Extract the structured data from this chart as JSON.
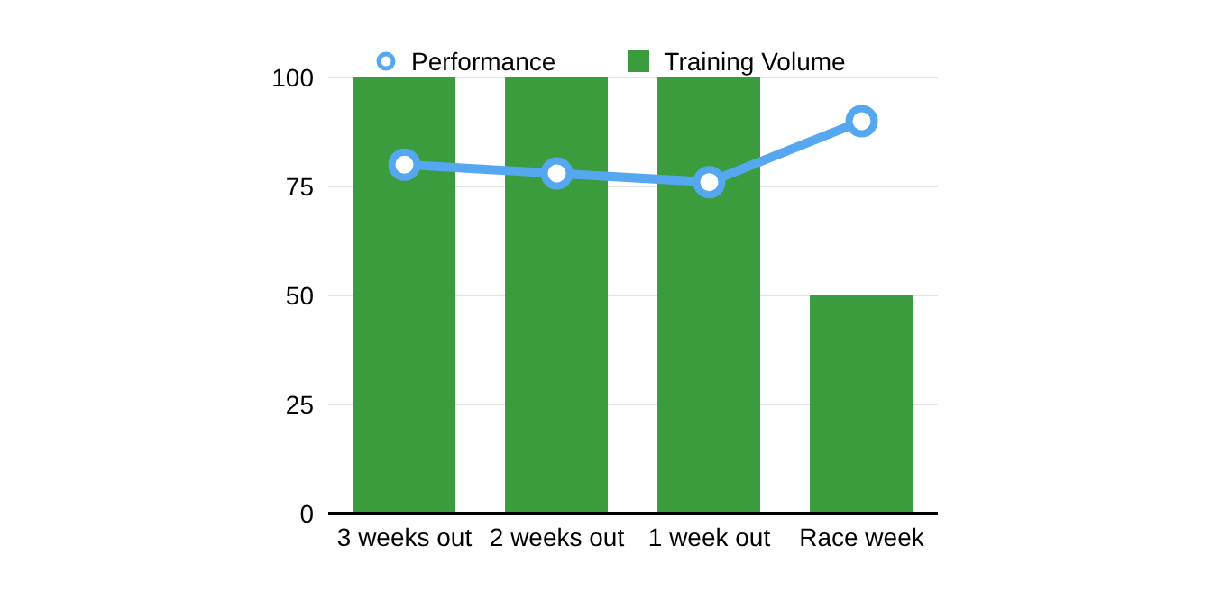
{
  "chart_data": {
    "type": "bar",
    "categories": [
      "3 weeks out",
      "2 weeks out",
      "1 week out",
      "Race week"
    ],
    "series": [
      {
        "name": "Training Volume",
        "color": "#3a9c3c",
        "values": [
          100,
          100,
          100,
          50
        ]
      },
      {
        "name": "Performance",
        "type": "line",
        "color": "#55a7f0",
        "values": [
          80,
          78,
          76,
          90
        ],
        "marker": "circle"
      }
    ],
    "ylim": [
      0,
      100
    ],
    "yticks": [
      0,
      25,
      50,
      75,
      100
    ],
    "grid": "y",
    "legend": "top"
  }
}
